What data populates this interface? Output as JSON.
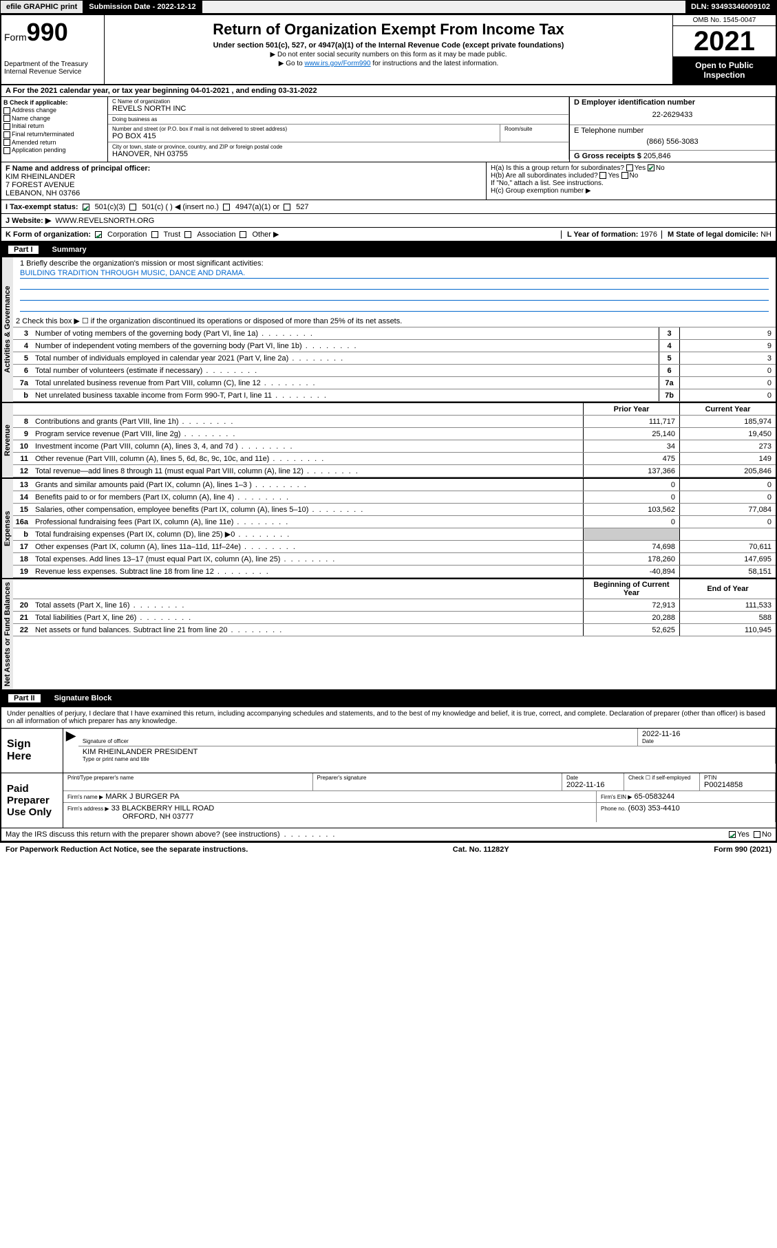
{
  "topbar": {
    "efile": "efile GRAPHIC print",
    "subdate_label": "Submission Date - 2022-12-12",
    "dln": "DLN: 93493346009102"
  },
  "header": {
    "form_word": "Form",
    "form_number": "990",
    "dept": "Department of the Treasury Internal Revenue Service",
    "main_title": "Return of Organization Exempt From Income Tax",
    "subtitle": "Under section 501(c), 527, or 4947(a)(1) of the Internal Revenue Code (except private foundations)",
    "instr1": "▶ Do not enter social security numbers on this form as it may be made public.",
    "instr2_pre": "▶ Go to ",
    "instr2_link": "www.irs.gov/Form990",
    "instr2_post": " for instructions and the latest information.",
    "omb": "OMB No. 1545-0047",
    "year": "2021",
    "open_public": "Open to Public Inspection"
  },
  "section_a": {
    "text": "A For the 2021 calendar year, or tax year beginning 04-01-2021   , and ending 03-31-2022"
  },
  "check_b": {
    "label": "B Check if applicable:",
    "items": [
      "Address change",
      "Name change",
      "Initial return",
      "Final return/terminated",
      "Amended return",
      "Application pending"
    ]
  },
  "org": {
    "name_label": "C Name of organization",
    "name": "REVELS NORTH INC",
    "dba_label": "Doing business as",
    "dba": "",
    "addr_label": "Number and street (or P.O. box if mail is not delivered to street address)",
    "room_label": "Room/suite",
    "addr": "PO BOX 415",
    "city_label": "City or town, state or province, country, and ZIP or foreign postal code",
    "city": "HANOVER, NH  03755"
  },
  "right_id": {
    "d_label": "D Employer identification number",
    "d_val": "22-2629433",
    "e_label": "E Telephone number",
    "e_val": "(866) 556-3083",
    "g_label": "G Gross receipts $",
    "g_val": "205,846"
  },
  "f_block": {
    "label": "F Name and address of principal officer:",
    "name": "KIM RHEINLANDER",
    "addr1": "7 FOREST AVENUE",
    "addr2": "LEBANON, NH  03766"
  },
  "h_block": {
    "ha": "H(a) Is this a group return for subordinates?",
    "hb": "H(b) Are all subordinates included?",
    "hb_note": "If \"No,\" attach a list. See instructions.",
    "hc": "H(c) Group exemption number ▶",
    "yes": "Yes",
    "no": "No"
  },
  "i_line": {
    "label": "I    Tax-exempt status:",
    "opt1": "501(c)(3)",
    "opt2": "501(c) (  ) ◀ (insert no.)",
    "opt3": "4947(a)(1) or",
    "opt4": "527"
  },
  "j_line": {
    "label": "J    Website: ▶",
    "val": "WWW.REVELSNORTH.ORG"
  },
  "k_line": {
    "label": "K Form of organization:",
    "opts": [
      "Corporation",
      "Trust",
      "Association",
      "Other ▶"
    ]
  },
  "l_line": {
    "label": "L Year of formation:",
    "val": "1976"
  },
  "m_line": {
    "label": "M State of legal domicile:",
    "val": "NH"
  },
  "part1": {
    "title": "Part I",
    "heading": "Summary",
    "line1_label": "1  Briefly describe the organization's mission or most significant activities:",
    "line1_val": "BUILDING TRADITION THROUGH MUSIC, DANCE AND DRAMA.",
    "line2": "2   Check this box ▶ ☐  if the organization discontinued its operations or disposed of more than 25% of its net assets.",
    "gov_tab": "Activities & Governance",
    "rev_tab": "Revenue",
    "exp_tab": "Expenses",
    "net_tab": "Net Assets or Fund Balances",
    "prior_year": "Prior Year",
    "current_year": "Current Year",
    "begin_year": "Beginning of Current Year",
    "end_year": "End of Year",
    "lines_gov": [
      {
        "n": "3",
        "d": "Number of voting members of the governing body (Part VI, line 1a)",
        "box": "3",
        "v": "9"
      },
      {
        "n": "4",
        "d": "Number of independent voting members of the governing body (Part VI, line 1b)",
        "box": "4",
        "v": "9"
      },
      {
        "n": "5",
        "d": "Total number of individuals employed in calendar year 2021 (Part V, line 2a)",
        "box": "5",
        "v": "3"
      },
      {
        "n": "6",
        "d": "Total number of volunteers (estimate if necessary)",
        "box": "6",
        "v": "0"
      },
      {
        "n": "7a",
        "d": "Total unrelated business revenue from Part VIII, column (C), line 12",
        "box": "7a",
        "v": "0"
      },
      {
        "n": "b",
        "d": "Net unrelated business taxable income from Form 990-T, Part I, line 11",
        "box": "7b",
        "v": "0"
      }
    ],
    "lines_rev": [
      {
        "n": "8",
        "d": "Contributions and grants (Part VIII, line 1h)",
        "p": "111,717",
        "c": "185,974"
      },
      {
        "n": "9",
        "d": "Program service revenue (Part VIII, line 2g)",
        "p": "25,140",
        "c": "19,450"
      },
      {
        "n": "10",
        "d": "Investment income (Part VIII, column (A), lines 3, 4, and 7d )",
        "p": "34",
        "c": "273"
      },
      {
        "n": "11",
        "d": "Other revenue (Part VIII, column (A), lines 5, 6d, 8c, 9c, 10c, and 11e)",
        "p": "475",
        "c": "149"
      },
      {
        "n": "12",
        "d": "Total revenue—add lines 8 through 11 (must equal Part VIII, column (A), line 12)",
        "p": "137,366",
        "c": "205,846"
      }
    ],
    "lines_exp": [
      {
        "n": "13",
        "d": "Grants and similar amounts paid (Part IX, column (A), lines 1–3 )",
        "p": "0",
        "c": "0"
      },
      {
        "n": "14",
        "d": "Benefits paid to or for members (Part IX, column (A), line 4)",
        "p": "0",
        "c": "0"
      },
      {
        "n": "15",
        "d": "Salaries, other compensation, employee benefits (Part IX, column (A), lines 5–10)",
        "p": "103,562",
        "c": "77,084"
      },
      {
        "n": "16a",
        "d": "Professional fundraising fees (Part IX, column (A), line 11e)",
        "p": "0",
        "c": "0"
      },
      {
        "n": "b",
        "d": "Total fundraising expenses (Part IX, column (D), line 25) ▶0",
        "p": "",
        "c": "",
        "shade": true
      },
      {
        "n": "17",
        "d": "Other expenses (Part IX, column (A), lines 11a–11d, 11f–24e)",
        "p": "74,698",
        "c": "70,611"
      },
      {
        "n": "18",
        "d": "Total expenses. Add lines 13–17 (must equal Part IX, column (A), line 25)",
        "p": "178,260",
        "c": "147,695"
      },
      {
        "n": "19",
        "d": "Revenue less expenses. Subtract line 18 from line 12",
        "p": "-40,894",
        "c": "58,151"
      }
    ],
    "lines_net": [
      {
        "n": "20",
        "d": "Total assets (Part X, line 16)",
        "p": "72,913",
        "c": "111,533"
      },
      {
        "n": "21",
        "d": "Total liabilities (Part X, line 26)",
        "p": "20,288",
        "c": "588"
      },
      {
        "n": "22",
        "d": "Net assets or fund balances. Subtract line 21 from line 20",
        "p": "52,625",
        "c": "110,945"
      }
    ]
  },
  "part2": {
    "title": "Part II",
    "heading": "Signature Block",
    "perjury": "Under penalties of perjury, I declare that I have examined this return, including accompanying schedules and statements, and to the best of my knowledge and belief, it is true, correct, and complete. Declaration of preparer (other than officer) is based on all information of which preparer has any knowledge.",
    "sign_here": "Sign Here",
    "sig_officer": "Signature of officer",
    "sig_date": "2022-11-16",
    "date_label": "Date",
    "officer_name": "KIM RHEINLANDER  PRESIDENT",
    "type_name": "Type or print name and title",
    "paid_label": "Paid Preparer Use Only",
    "prep_name_label": "Print/Type preparer's name",
    "prep_sig_label": "Preparer's signature",
    "prep_date_label": "Date",
    "prep_date": "2022-11-16",
    "check_if": "Check ☐ if self-employed",
    "ptin_label": "PTIN",
    "ptin": "P00214858",
    "firm_name_label": "Firm's name    ▶",
    "firm_name": "MARK J BURGER PA",
    "firm_ein_label": "Firm's EIN ▶",
    "firm_ein": "65-0583244",
    "firm_addr_label": "Firm's address ▶",
    "firm_addr": "33 BLACKBERRY HILL ROAD",
    "firm_addr2": "ORFORD, NH  03777",
    "phone_label": "Phone no.",
    "phone": "(603) 353-4410",
    "discuss": "May the IRS discuss this return with the preparer shown above? (see instructions)"
  },
  "footer": {
    "left": "For Paperwork Reduction Act Notice, see the separate instructions.",
    "mid": "Cat. No. 11282Y",
    "right": "Form 990 (2021)"
  }
}
